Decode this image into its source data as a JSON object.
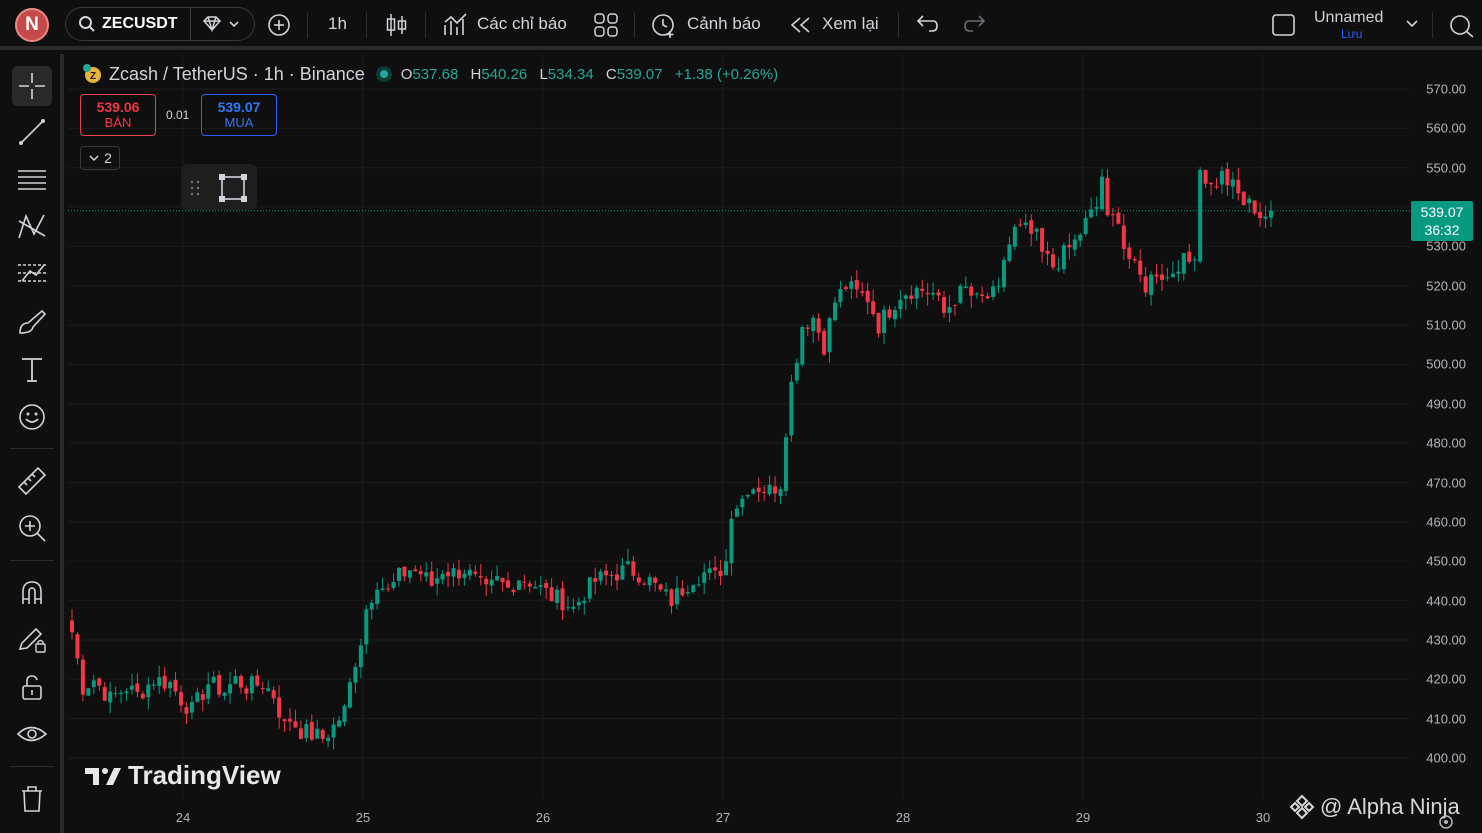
{
  "header": {
    "avatar_letter": "N",
    "symbol": "ZECUSDT",
    "interval": "1h",
    "indicators_label": "Các chỉ báo",
    "alerts_label": "Cảnh báo",
    "replay_label": "Xem lại",
    "layout_name": "Unnamed",
    "save_label": "Lưu"
  },
  "legend": {
    "title": "Zcash / TetherUS · 1h · Binance",
    "open_key": "O",
    "open": "537.68",
    "high_key": "H",
    "high": "540.26",
    "low_key": "L",
    "low": "534.34",
    "close_key": "C",
    "close": "539.07",
    "change": "+1.38 (+0.26%)"
  },
  "trade": {
    "sell_price": "539.06",
    "sell_label": "BÁN",
    "spread": "0.01",
    "buy_price": "539.07",
    "buy_label": "MUA",
    "collapse_count": "2"
  },
  "last_price": {
    "price": "539.07",
    "countdown": "36:32"
  },
  "branding": {
    "tradingview": "TradingView",
    "watermark": "@ Alpha Ninja"
  },
  "colors": {
    "up": "#089981",
    "down": "#f23645",
    "background": "#0f0f0f"
  },
  "chart_data": {
    "type": "candlestick",
    "y_tick_labels": [
      "570.00",
      "560.00",
      "550.00",
      "540.00",
      "530.00",
      "520.00",
      "510.00",
      "500.00",
      "490.00",
      "480.00",
      "470.00",
      "460.00",
      "450.00",
      "440.00",
      "430.00",
      "420.00",
      "410.00",
      "400.00"
    ],
    "x_tick_labels": [
      "24",
      "25",
      "26",
      "27",
      "28",
      "29",
      "30"
    ],
    "ylim": [
      397,
      578
    ],
    "grid": true,
    "close_path": [
      [
        0,
        432
      ],
      [
        2,
        418
      ],
      [
        4,
        420
      ],
      [
        7,
        415
      ],
      [
        10,
        418
      ],
      [
        12,
        416
      ],
      [
        15,
        420
      ],
      [
        18,
        419
      ],
      [
        20,
        415
      ],
      [
        22,
        412
      ],
      [
        25,
        419
      ],
      [
        28,
        417
      ],
      [
        30,
        420
      ],
      [
        32,
        418
      ],
      [
        35,
        419
      ],
      [
        37,
        416
      ],
      [
        39,
        408
      ],
      [
        40,
        410
      ],
      [
        42,
        407
      ],
      [
        44,
        406
      ],
      [
        46,
        405
      ],
      [
        48,
        408
      ],
      [
        50,
        412
      ],
      [
        52,
        425
      ],
      [
        53,
        430
      ],
      [
        54,
        438
      ],
      [
        56,
        445
      ],
      [
        58,
        442
      ],
      [
        60,
        446
      ],
      [
        62,
        448
      ],
      [
        64,
        447
      ],
      [
        66,
        444
      ],
      [
        68,
        448
      ],
      [
        70,
        447
      ],
      [
        72,
        448
      ],
      [
        74,
        445
      ],
      [
        76,
        442
      ],
      [
        78,
        445
      ],
      [
        80,
        443
      ],
      [
        82,
        446
      ],
      [
        84,
        445
      ],
      [
        86,
        443
      ],
      [
        88,
        441
      ],
      [
        90,
        440
      ],
      [
        92,
        438
      ],
      [
        94,
        442
      ],
      [
        96,
        445
      ],
      [
        98,
        446
      ],
      [
        100,
        447
      ],
      [
        102,
        448
      ],
      [
        104,
        447
      ],
      [
        106,
        445
      ],
      [
        108,
        442
      ],
      [
        110,
        440
      ],
      [
        112,
        443
      ],
      [
        114,
        446
      ],
      [
        116,
        447
      ],
      [
        118,
        446
      ],
      [
        120,
        450
      ],
      [
        121,
        463
      ],
      [
        123,
        466
      ],
      [
        124,
        469
      ],
      [
        126,
        469
      ],
      [
        128,
        468
      ],
      [
        130,
        470
      ],
      [
        131,
        484
      ],
      [
        132,
        495
      ],
      [
        134,
        510
      ],
      [
        136,
        512
      ],
      [
        138,
        505
      ],
      [
        140,
        516
      ],
      [
        142,
        520
      ],
      [
        144,
        518
      ],
      [
        146,
        517
      ],
      [
        148,
        510
      ],
      [
        150,
        514
      ],
      [
        152,
        518
      ],
      [
        154,
        519
      ],
      [
        156,
        519
      ],
      [
        158,
        518
      ],
      [
        160,
        513
      ],
      [
        162,
        517
      ],
      [
        164,
        519
      ],
      [
        166,
        516
      ],
      [
        168,
        517
      ],
      [
        170,
        518
      ],
      [
        171,
        527
      ],
      [
        173,
        534
      ],
      [
        175,
        534
      ],
      [
        177,
        532
      ],
      [
        178,
        528
      ],
      [
        180,
        525
      ],
      [
        182,
        528
      ],
      [
        184,
        531
      ],
      [
        186,
        536
      ],
      [
        188,
        540
      ],
      [
        189,
        548
      ],
      [
        190,
        536
      ],
      [
        192,
        538
      ],
      [
        193,
        530
      ],
      [
        195,
        524
      ],
      [
        197,
        520
      ],
      [
        199,
        524
      ],
      [
        201,
        522
      ],
      [
        203,
        526
      ],
      [
        205,
        526
      ],
      [
        206,
        529
      ],
      [
        207,
        550
      ],
      [
        209,
        545
      ],
      [
        211,
        548
      ],
      [
        213,
        545
      ],
      [
        215,
        541
      ],
      [
        217,
        540
      ],
      [
        218,
        538
      ],
      [
        219,
        538
      ],
      [
        220,
        539.07
      ]
    ],
    "x_label_index": [
      3,
      33,
      63,
      93,
      123,
      153,
      183
    ]
  }
}
